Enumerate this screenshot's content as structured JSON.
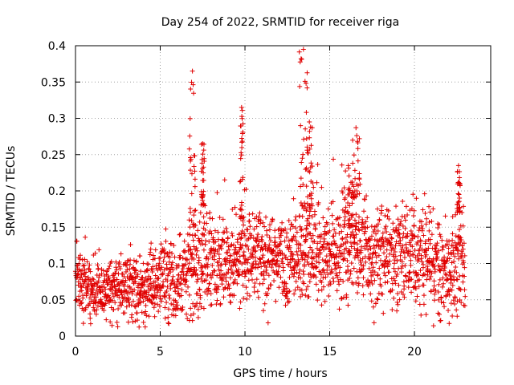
{
  "chart_data": {
    "type": "scatter",
    "title": "Day 254 of 2022, SRMTID for receiver riga",
    "xlabel": "GPS time / hours",
    "ylabel": "SRMTID / TECUs",
    "xlim": [
      0,
      24.5
    ],
    "ylim": [
      0,
      0.4
    ],
    "xticks": [
      0,
      5,
      10,
      15,
      20
    ],
    "xtick_labels": [
      "0",
      "5",
      "10",
      "15",
      "20"
    ],
    "yticks": [
      0,
      0.05,
      0.1,
      0.15,
      0.2,
      0.25,
      0.3,
      0.35,
      0.4
    ],
    "ytick_labels": [
      "0",
      "0.05",
      "0.1",
      "0.15",
      "0.2",
      "0.25",
      "0.3",
      "0.35",
      "0.4"
    ],
    "grid": true,
    "marker": "plus",
    "color": "#e00000",
    "series": [
      {
        "name": "SRMTID",
        "x_range": [
          0,
          23
        ],
        "approx_points": 2200,
        "envelope": [
          {
            "x": 0.0,
            "median": 0.08,
            "spread": 0.025
          },
          {
            "x": 1.0,
            "median": 0.065,
            "spread": 0.02
          },
          {
            "x": 2.0,
            "median": 0.06,
            "spread": 0.02
          },
          {
            "x": 3.0,
            "median": 0.07,
            "spread": 0.025
          },
          {
            "x": 4.0,
            "median": 0.065,
            "spread": 0.025
          },
          {
            "x": 5.0,
            "median": 0.08,
            "spread": 0.03
          },
          {
            "x": 6.0,
            "median": 0.07,
            "spread": 0.025
          },
          {
            "x": 7.0,
            "median": 0.1,
            "spread": 0.035
          },
          {
            "x": 8.0,
            "median": 0.1,
            "spread": 0.03
          },
          {
            "x": 9.0,
            "median": 0.105,
            "spread": 0.03
          },
          {
            "x": 10.0,
            "median": 0.11,
            "spread": 0.035
          },
          {
            "x": 11.0,
            "median": 0.11,
            "spread": 0.035
          },
          {
            "x": 12.0,
            "median": 0.095,
            "spread": 0.03
          },
          {
            "x": 13.0,
            "median": 0.11,
            "spread": 0.035
          },
          {
            "x": 14.0,
            "median": 0.12,
            "spread": 0.035
          },
          {
            "x": 15.0,
            "median": 0.11,
            "spread": 0.035
          },
          {
            "x": 16.0,
            "median": 0.13,
            "spread": 0.04
          },
          {
            "x": 17.0,
            "median": 0.12,
            "spread": 0.035
          },
          {
            "x": 18.0,
            "median": 0.11,
            "spread": 0.035
          },
          {
            "x": 19.0,
            "median": 0.105,
            "spread": 0.035
          },
          {
            "x": 20.0,
            "median": 0.105,
            "spread": 0.035
          },
          {
            "x": 21.0,
            "median": 0.1,
            "spread": 0.035
          },
          {
            "x": 22.0,
            "median": 0.095,
            "spread": 0.035
          },
          {
            "x": 23.0,
            "median": 0.1,
            "spread": 0.03
          }
        ],
        "bursts": [
          {
            "x_from": 6.7,
            "x_to": 7.1,
            "y_from": 0.15,
            "y_to": 0.365
          },
          {
            "x_from": 7.4,
            "x_to": 7.6,
            "y_from": 0.18,
            "y_to": 0.265
          },
          {
            "x_from": 9.7,
            "x_to": 9.9,
            "y_from": 0.16,
            "y_to": 0.315
          },
          {
            "x_from": 13.2,
            "x_to": 13.7,
            "y_from": 0.17,
            "y_to": 0.395
          },
          {
            "x_from": 13.6,
            "x_to": 14.0,
            "y_from": 0.16,
            "y_to": 0.295
          },
          {
            "x_from": 15.8,
            "x_to": 16.4,
            "y_from": 0.15,
            "y_to": 0.235
          },
          {
            "x_from": 16.3,
            "x_to": 16.8,
            "y_from": 0.19,
            "y_to": 0.287
          },
          {
            "x_from": 22.5,
            "x_to": 22.7,
            "y_from": 0.17,
            "y_to": 0.235
          }
        ]
      }
    ]
  }
}
